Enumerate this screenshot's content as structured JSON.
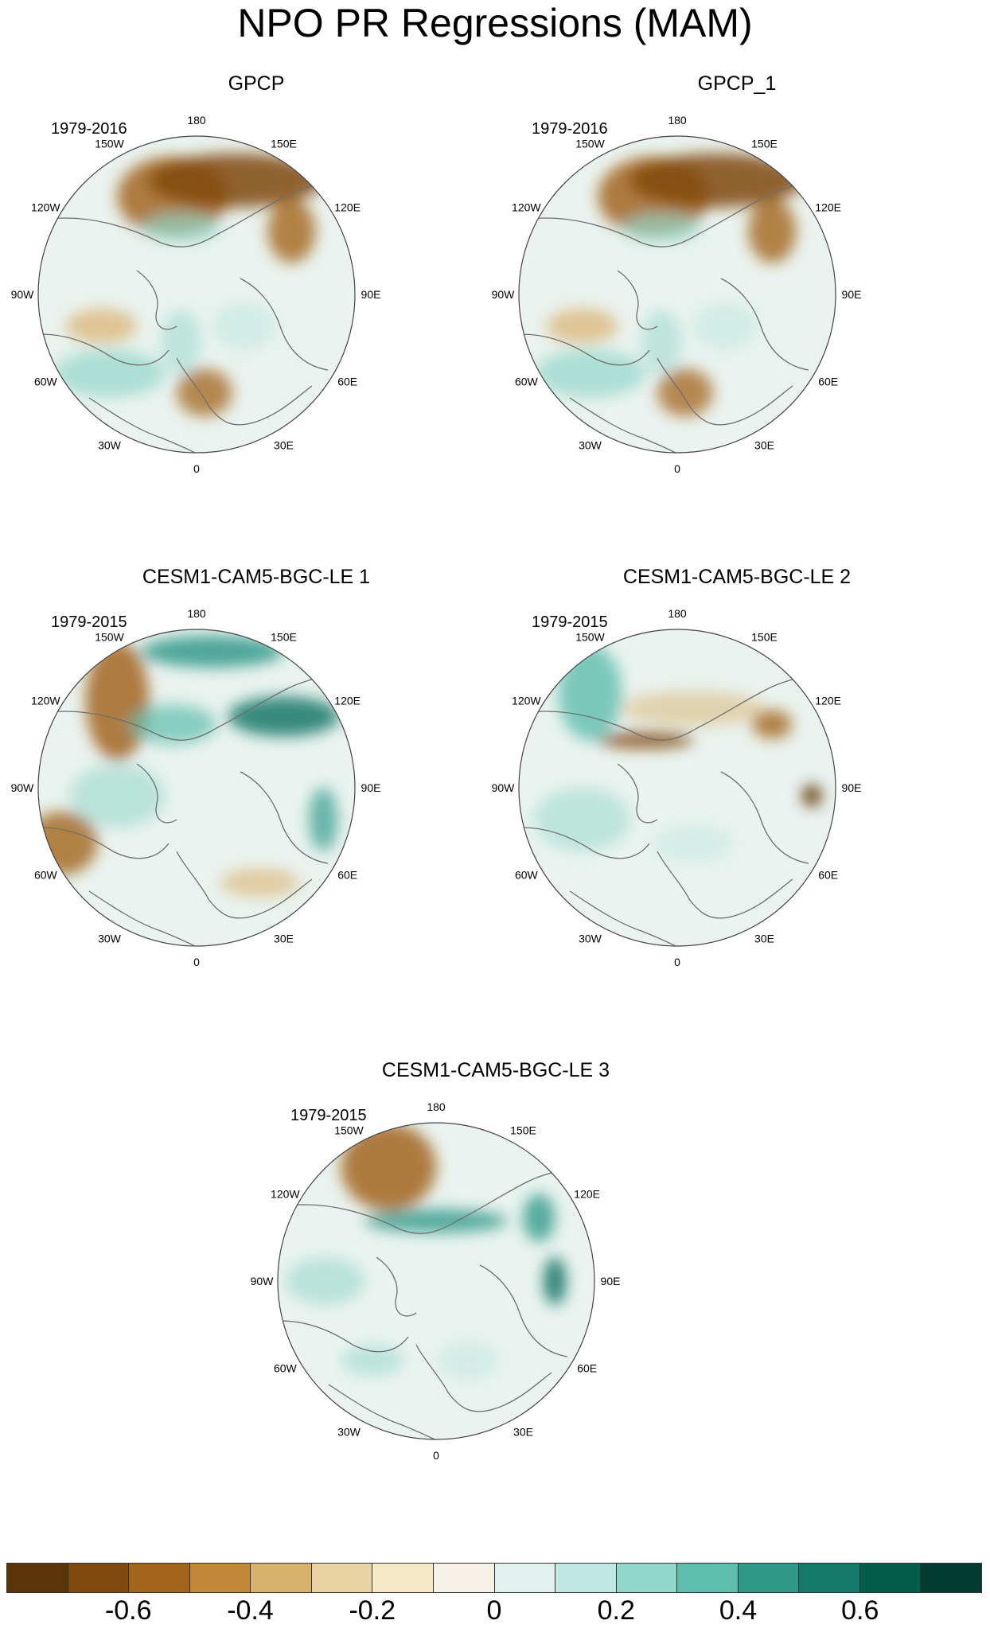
{
  "title": "NPO PR Regressions (MAM)",
  "panels": [
    {
      "title": "GPCP",
      "years": "1979-2016"
    },
    {
      "title": "GPCP_1",
      "years": "1979-2016"
    },
    {
      "title": "CESM1-CAM5-BGC-LE 1",
      "years": "1979-2015"
    },
    {
      "title": "CESM1-CAM5-BGC-LE 2",
      "years": "1979-2015"
    },
    {
      "title": "CESM1-CAM5-BGC-LE 3",
      "years": "1979-2015"
    }
  ],
  "longitude_labels": [
    "180",
    "150E",
    "120E",
    "90E",
    "60E",
    "30E",
    "0",
    "30W",
    "60W",
    "90W",
    "120W",
    "150W"
  ],
  "colorbar": {
    "colors": [
      "#5b3407",
      "#80490e",
      "#a2641d",
      "#c08838",
      "#d8b16d",
      "#e9d3a2",
      "#f5e9c8",
      "#f5f1e6",
      "#e0f1ee",
      "#c1e8e0",
      "#91d6c9",
      "#5ebdad",
      "#31998a",
      "#157868",
      "#045c4b",
      "#013c30"
    ],
    "labels": [
      "-0.6",
      "-0.4",
      "-0.2",
      "0",
      "0.2",
      "0.4",
      "0.6"
    ]
  },
  "colors": {
    "dry": "#a2641d",
    "wet": "#157868",
    "neutral": "#f5f1e6",
    "coast": "#6e6e6e"
  }
}
